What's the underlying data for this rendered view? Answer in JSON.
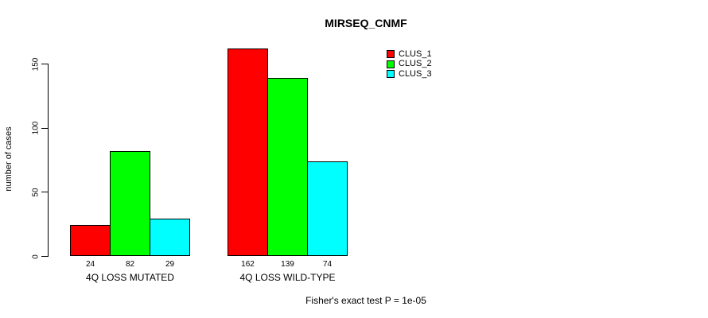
{
  "chart_data": {
    "type": "bar",
    "title": "MIRSEQ_CNMF",
    "ylabel": "number of cases",
    "xlabel": "",
    "annotation": "Fisher's exact test P = 1e-05",
    "categories": [
      "4Q LOSS MUTATED",
      "4Q LOSS WILD-TYPE"
    ],
    "series": [
      {
        "name": "CLUS_1",
        "color": "#ff0000",
        "values": [
          24,
          162
        ]
      },
      {
        "name": "CLUS_2",
        "color": "#00ff00",
        "values": [
          82,
          139
        ]
      },
      {
        "name": "CLUS_3",
        "color": "#00ffff",
        "values": [
          29,
          74
        ]
      }
    ],
    "bar_value_labels": [
      [
        24,
        82,
        29
      ],
      [
        162,
        139,
        74
      ]
    ],
    "yticks": [
      0,
      50,
      100,
      150
    ],
    "ylim": [
      0,
      162
    ],
    "grid": false,
    "legend_position": "top-right",
    "bar_border_color": "#000000",
    "text_color": "#000000",
    "background_color": "#ffffff"
  }
}
